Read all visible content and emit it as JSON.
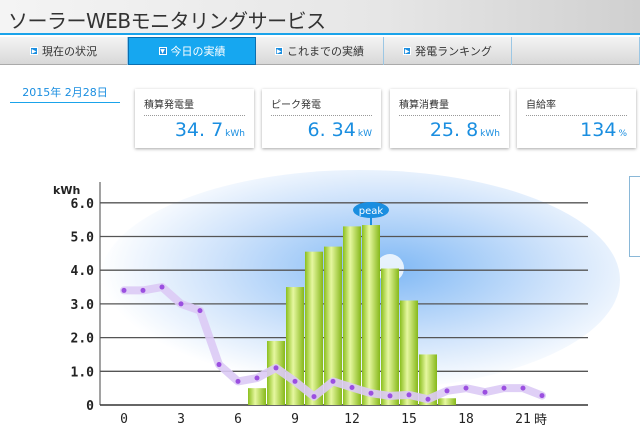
{
  "header": {
    "title": "ソーラーWEBモニタリングサービス"
  },
  "nav": {
    "tabs": [
      {
        "label": "現在の状況",
        "active": false
      },
      {
        "label": "今日の実績",
        "active": true
      },
      {
        "label": "これまでの実績",
        "active": false
      },
      {
        "label": "発電ランキング",
        "active": false
      }
    ]
  },
  "date": "2015年  2月28日",
  "cards": [
    {
      "label": "積算発電量",
      "value": "34. 7",
      "unit": "kWh"
    },
    {
      "label": "ピーク発電",
      "value": "6. 34",
      "unit": "kW"
    },
    {
      "label": "積算消費量",
      "value": "25. 8",
      "unit": "kWh"
    },
    {
      "label": "自給率",
      "value": "134",
      "unit": "%"
    }
  ],
  "colors": {
    "accent": "#1aa3ea",
    "bars": "#9ccc2a",
    "consumption": "#a86de0"
  },
  "chart_data": {
    "type": "bar",
    "ylabel": "kWh",
    "xunit": "時",
    "ylim": [
      0,
      6.5
    ],
    "yticks": [
      "0",
      "1.0",
      "2.0",
      "3.0",
      "4.0",
      "5.0",
      "6.0"
    ],
    "xticks": [
      "0",
      "3",
      "6",
      "9",
      "12",
      "15",
      "18",
      "21"
    ],
    "peak_label": "peak",
    "series": [
      {
        "type": "bar",
        "x": [
          7,
          8,
          9,
          10,
          11,
          12,
          13,
          14,
          15,
          16,
          17
        ],
        "values": [
          0.5,
          1.9,
          3.5,
          4.55,
          4.7,
          5.3,
          5.34,
          4.05,
          3.1,
          1.5,
          0.2
        ]
      },
      {
        "type": "line",
        "x": [
          0,
          1,
          2,
          3,
          4,
          5,
          6,
          7,
          8,
          9,
          10,
          11,
          12,
          13,
          14,
          15,
          16,
          17,
          18,
          19,
          20,
          21,
          22
        ],
        "values": [
          3.4,
          3.4,
          3.5,
          3.0,
          2.8,
          1.2,
          0.7,
          0.8,
          1.1,
          0.7,
          0.25,
          0.7,
          0.52,
          0.35,
          0.27,
          0.3,
          0.17,
          0.42,
          0.5,
          0.38,
          0.5,
          0.5,
          0.28
        ]
      }
    ],
    "grid": true
  }
}
